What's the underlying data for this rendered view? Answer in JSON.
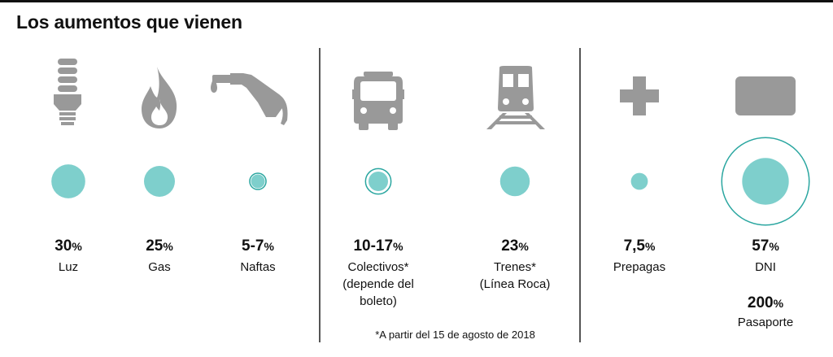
{
  "title": "Los aumentos que vienen",
  "footnote": "*A partir del 15 de agosto de 2018",
  "colors": {
    "bubble": "#7ecfcc",
    "ring": "#2aa6a0",
    "icon": "#999999",
    "text": "#111111"
  },
  "chart_data": {
    "type": "bubble",
    "unit": "%",
    "title": "Los aumentos que vienen",
    "items": [
      {
        "name": "Luz",
        "value_label": "30",
        "value": 30,
        "icon": "light-bulb-icon"
      },
      {
        "name": "Gas",
        "value_label": "25",
        "value": 25,
        "icon": "flame-icon"
      },
      {
        "name": "Naftas",
        "value_label": "5-7",
        "value_min": 5,
        "value_max": 7,
        "icon": "fuel-nozzle-icon"
      },
      {
        "name": "Colectivos* (depende del boleto)",
        "value_label": "10-17",
        "value_min": 10,
        "value_max": 17,
        "icon": "bus-icon"
      },
      {
        "name": "Trenes* (Línea Roca)",
        "value_label": "23",
        "value": 23,
        "icon": "train-icon"
      },
      {
        "name": "Prepagas",
        "value_label": "7,5",
        "value": 7.5,
        "icon": "medical-cross-icon"
      },
      {
        "name": "DNI",
        "value_label": "57",
        "value": 57,
        "icon": "id-card-icon"
      },
      {
        "name": "Pasaporte",
        "value_label": "200",
        "value": 200
      }
    ],
    "labels": [
      {
        "pct": "30",
        "sign": "%",
        "lines": [
          "Luz"
        ]
      },
      {
        "pct": "25",
        "sign": "%",
        "lines": [
          "Gas"
        ]
      },
      {
        "pct": "5-7",
        "sign": "%",
        "lines": [
          "Naftas"
        ]
      },
      {
        "pct": "10-17",
        "sign": "%",
        "lines": [
          "Colectivos*",
          "(depende del",
          "boleto)"
        ]
      },
      {
        "pct": "23",
        "sign": "%",
        "lines": [
          "Trenes*",
          "(Línea Roca)"
        ]
      },
      {
        "pct": "7,5",
        "sign": "%",
        "lines": [
          "Prepagas"
        ]
      },
      {
        "pct": "57",
        "sign": "%",
        "lines": [
          "DNI"
        ]
      },
      {
        "pct": "200",
        "sign": "%",
        "lines": [
          "Pasaporte"
        ]
      }
    ]
  }
}
